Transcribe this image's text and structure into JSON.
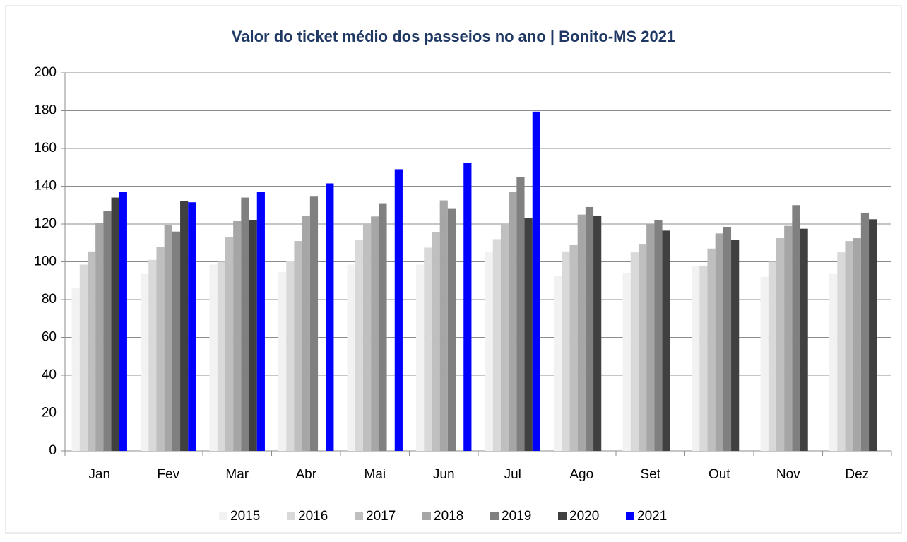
{
  "chart_data": {
    "type": "bar",
    "title": "Valor do ticket médio dos passeios no ano | Bonito-MS 2021",
    "categories": [
      "Jan",
      "Fev",
      "Mar",
      "Abr",
      "Mai",
      "Jun",
      "Jul",
      "Ago",
      "Set",
      "Out",
      "Nov",
      "Dez"
    ],
    "series": [
      {
        "name": "2015",
        "color": "#f2f2f2",
        "values": [
          86,
          93.5,
          98.5,
          94.5,
          98.5,
          98.5,
          105.5,
          92.5,
          94,
          97.5,
          92,
          93.5
        ]
      },
      {
        "name": "2016",
        "color": "#d9d9d9",
        "values": [
          98.5,
          101,
          100,
          100.5,
          111.5,
          107.5,
          112,
          105.5,
          105,
          98,
          100,
          105
        ]
      },
      {
        "name": "2017",
        "color": "#bfbfbf",
        "values": [
          105.5,
          108,
          113,
          111,
          120,
          115.5,
          120,
          109,
          109.5,
          107,
          112.5,
          111
        ]
      },
      {
        "name": "2018",
        "color": "#a6a6a6",
        "values": [
          120.5,
          119.5,
          121.5,
          124.5,
          124,
          132.5,
          137,
          125,
          120,
          115,
          119,
          112.5
        ]
      },
      {
        "name": "2019",
        "color": "#808080",
        "values": [
          127,
          116,
          134,
          134.5,
          131,
          128,
          145,
          129,
          122,
          118.5,
          130,
          126
        ]
      },
      {
        "name": "2020",
        "color": "#404040",
        "values": [
          134,
          132,
          122,
          null,
          null,
          null,
          123,
          124.5,
          116.5,
          111.5,
          117.5,
          122.5
        ]
      },
      {
        "name": "2021",
        "color": "#0000ff",
        "values": [
          137,
          131.5,
          137,
          141.5,
          149,
          152.5,
          179.5,
          null,
          null,
          null,
          null,
          null
        ]
      }
    ],
    "ylim": [
      0,
      200
    ],
    "yticks": [
      0,
      20,
      40,
      60,
      80,
      100,
      120,
      140,
      160,
      180,
      200
    ],
    "grid": true,
    "legend": "bottom"
  }
}
